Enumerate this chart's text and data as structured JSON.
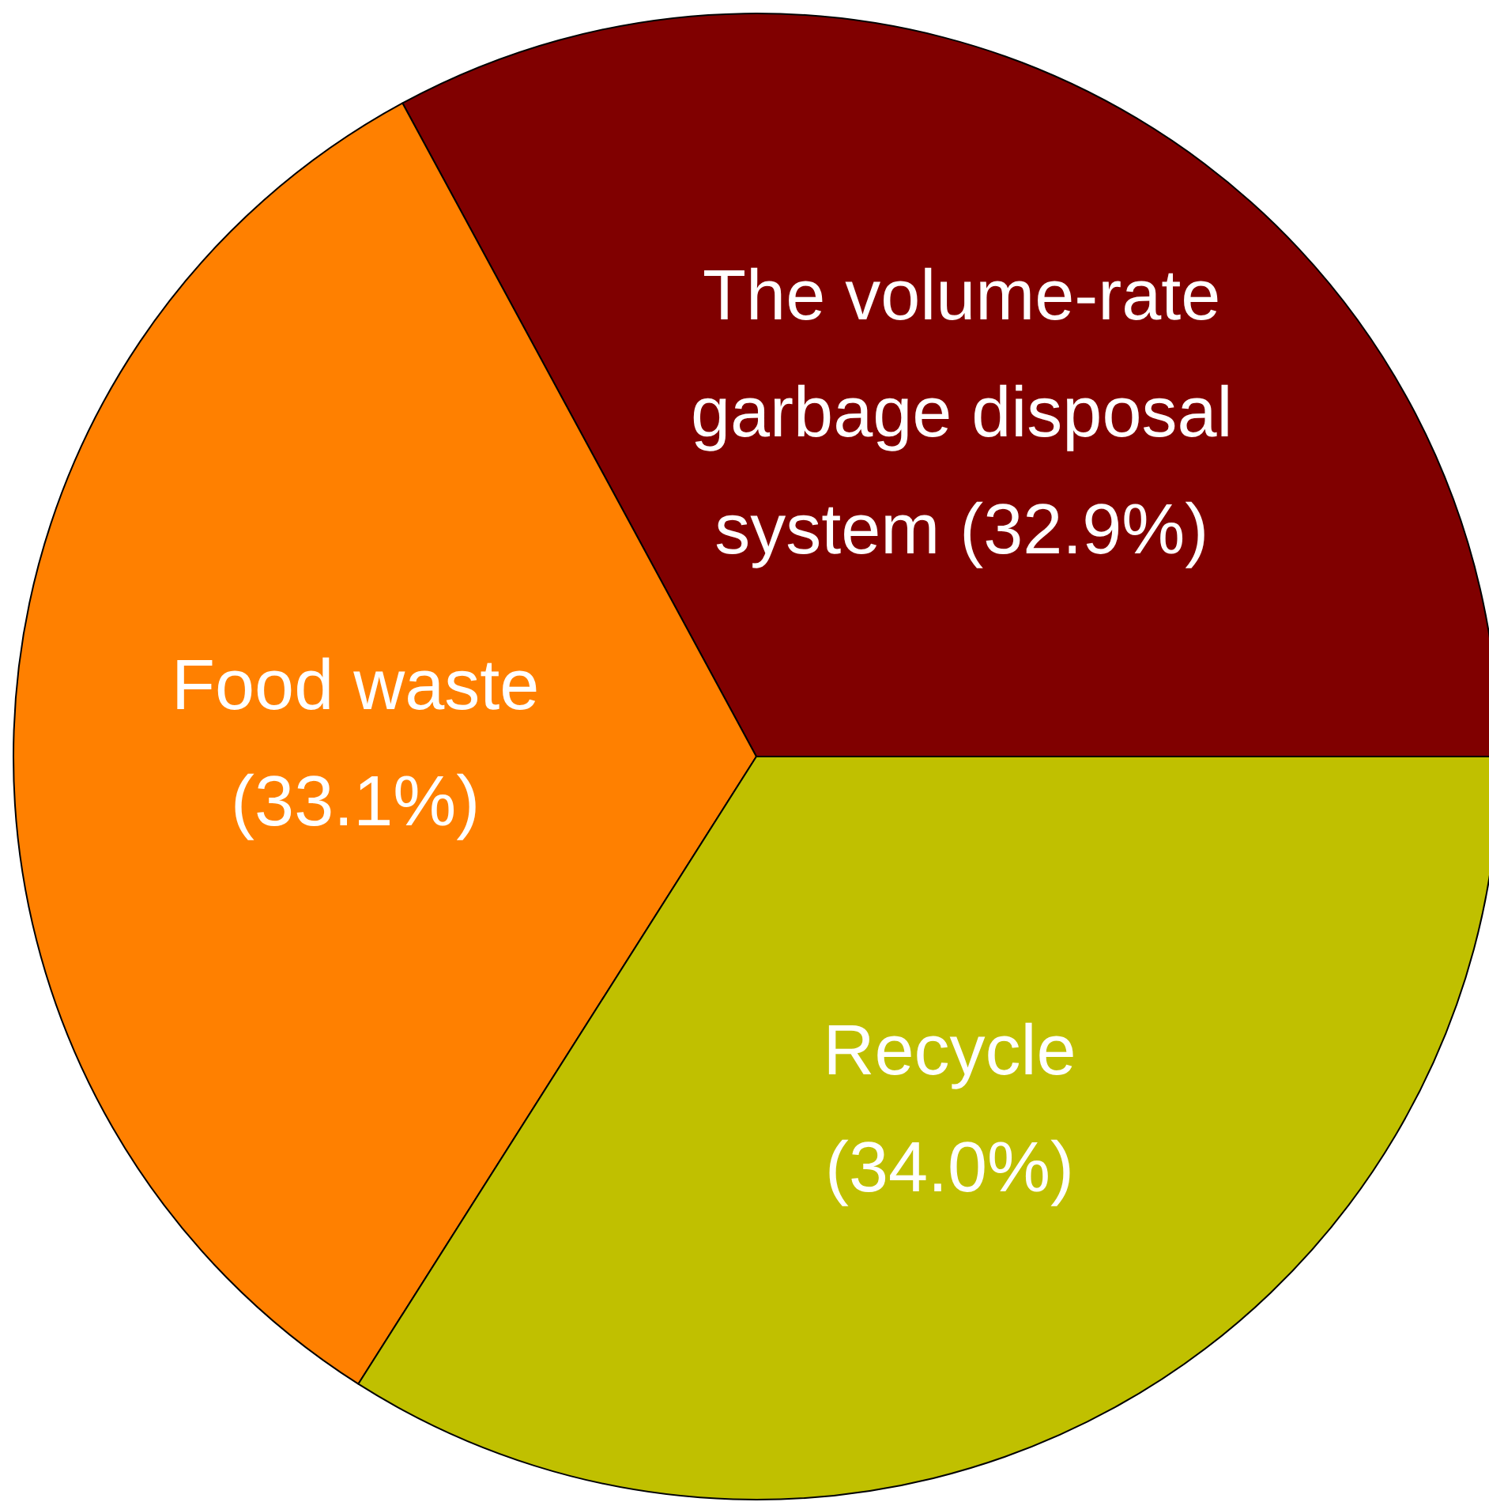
{
  "chart_data": {
    "type": "pie",
    "categories": [
      "The volume-rate garbage disposal system",
      "Food waste",
      "Recycle"
    ],
    "values": [
      32.9,
      33.1,
      34.0
    ],
    "colors": [
      "#800000",
      "#ff8000",
      "#c0c000"
    ],
    "value_labels": [
      "(32.9%)",
      "(33.1%)",
      "(34.0%)"
    ]
  }
}
